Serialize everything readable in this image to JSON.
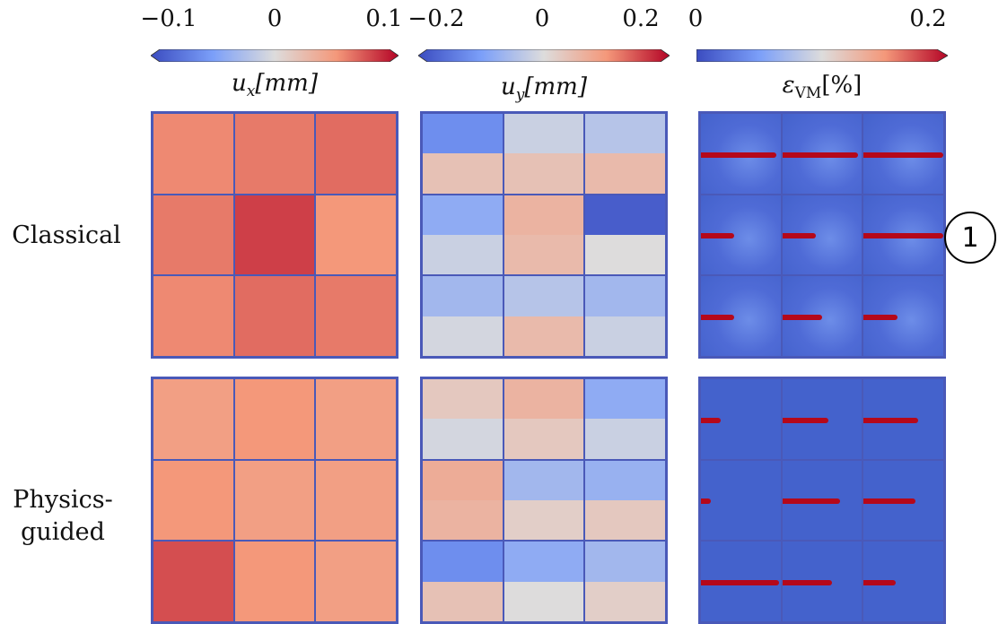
{
  "chart_data": [
    {
      "type": "heatmap",
      "colorbar_label_sym": "u",
      "colorbar_label_sub": "x",
      "colorbar_label_unit": "[mm]",
      "colormap": "coolwarm",
      "vmin": -0.1,
      "vmax": 0.1,
      "tick_labels": [
        "−0.1",
        "0",
        "0.1"
      ],
      "colorbar_extend": "both",
      "rows": [
        "Classical",
        "Physics-guided"
      ],
      "grid": "3x3",
      "cell_values": {
        "Classical": [
          [
            0.055,
            0.06,
            0.065
          ],
          [
            0.06,
            0.08,
            0.05
          ],
          [
            0.055,
            0.065,
            0.06
          ]
        ],
        "Physics-guided": [
          [
            0.045,
            0.05,
            0.045
          ],
          [
            0.05,
            0.045,
            0.045
          ],
          [
            0.075,
            0.05,
            0.045
          ]
        ]
      }
    },
    {
      "type": "heatmap",
      "colorbar_label_sym": "u",
      "colorbar_label_sub": "y",
      "colorbar_label_unit": "[mm]",
      "colormap": "coolwarm",
      "vmin": -0.2,
      "vmax": 0.2,
      "tick_labels": [
        "−0.2",
        "0",
        "0.2"
      ],
      "colorbar_extend": "both",
      "rows": [
        "Classical",
        "Physics-guided"
      ],
      "grid": "3x3",
      "cell_values_upper": {
        "Classical": [
          [
            -0.12,
            -0.02,
            -0.04
          ],
          [
            -0.08,
            0.06,
            -0.18
          ],
          [
            -0.06,
            -0.04,
            -0.06
          ]
        ],
        "Physics-guided": [
          [
            0.03,
            0.06,
            -0.08
          ],
          [
            0.07,
            -0.06,
            -0.07
          ],
          [
            -0.12,
            -0.08,
            -0.06
          ]
        ]
      },
      "cell_values_lower": {
        "Classical": [
          [
            0.04,
            0.04,
            0.05
          ],
          [
            -0.02,
            0.05,
            0.0
          ],
          [
            -0.01,
            0.05,
            -0.02
          ]
        ],
        "Physics-guided": [
          [
            -0.01,
            0.03,
            -0.02
          ],
          [
            0.06,
            0.02,
            0.03
          ],
          [
            0.04,
            0.0,
            0.02
          ]
        ]
      }
    },
    {
      "type": "heatmap",
      "colorbar_label_sym": "ε",
      "colorbar_label_sub": "VM",
      "colorbar_label_unit": "[%]",
      "colormap": "coolwarm",
      "vmin": 0,
      "vmax": 0.2,
      "tick_labels": [
        "0",
        "0.2"
      ],
      "colorbar_extend": "max",
      "rows": [
        "Classical",
        "Physics-guided"
      ],
      "grid": "3x3",
      "crack_extent": {
        "Classical": [
          [
            0.95,
            0.95,
            1.0
          ],
          [
            0.42,
            0.42,
            1.0
          ],
          [
            0.42,
            0.5,
            0.42
          ]
        ],
        "Physics-guided": [
          [
            0.25,
            0.58,
            0.68
          ],
          [
            0.12,
            0.72,
            0.65
          ],
          [
            0.98,
            0.62,
            0.4
          ]
        ]
      }
    }
  ],
  "row_labels": [
    "Classical",
    "Physics-\nguided"
  ],
  "annotation": "1"
}
